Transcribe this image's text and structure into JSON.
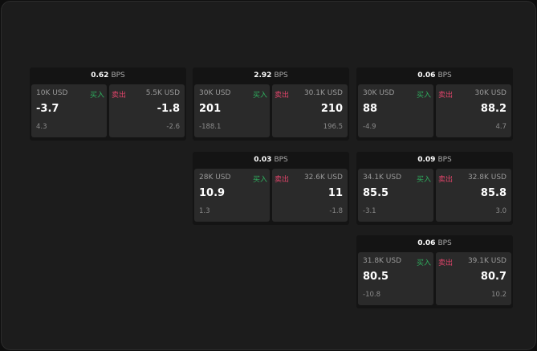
{
  "colors": {
    "buy": "#2fae5e",
    "sell": "#e0446a"
  },
  "unit": "BPS",
  "cards": [
    {
      "spread": "0.62",
      "buy": {
        "size": "10K USD",
        "label": "买入",
        "price": "-3.7",
        "change": "4.3"
      },
      "sell": {
        "size": "5.5K USD",
        "label": "卖出",
        "price": "-1.8",
        "change": "-2.6"
      }
    },
    {
      "spread": "2.92",
      "buy": {
        "size": "30K USD",
        "label": "买入",
        "price": "201",
        "change": "-188.1"
      },
      "sell": {
        "size": "30.1K USD",
        "label": "卖出",
        "price": "210",
        "change": "196.5"
      }
    },
    {
      "spread": "0.06",
      "buy": {
        "size": "30K USD",
        "label": "买入",
        "price": "88",
        "change": "-4.9"
      },
      "sell": {
        "size": "30K USD",
        "label": "卖出",
        "price": "88.2",
        "change": "4.7"
      }
    },
    {
      "spread": "0.03",
      "buy": {
        "size": "28K USD",
        "label": "买入",
        "price": "10.9",
        "change": "1.3"
      },
      "sell": {
        "size": "32.6K USD",
        "label": "卖出",
        "price": "11",
        "change": "-1.8"
      }
    },
    {
      "spread": "0.09",
      "buy": {
        "size": "34.1K USD",
        "label": "买入",
        "price": "85.5",
        "change": "-3.1"
      },
      "sell": {
        "size": "32.8K USD",
        "label": "卖出",
        "price": "85.8",
        "change": "3.0"
      }
    },
    {
      "spread": "0.06",
      "buy": {
        "size": "31.8K USD",
        "label": "买入",
        "price": "80.5",
        "change": "-10.8"
      },
      "sell": {
        "size": "39.1K USD",
        "label": "卖出",
        "price": "80.7",
        "change": "10.2"
      }
    }
  ]
}
